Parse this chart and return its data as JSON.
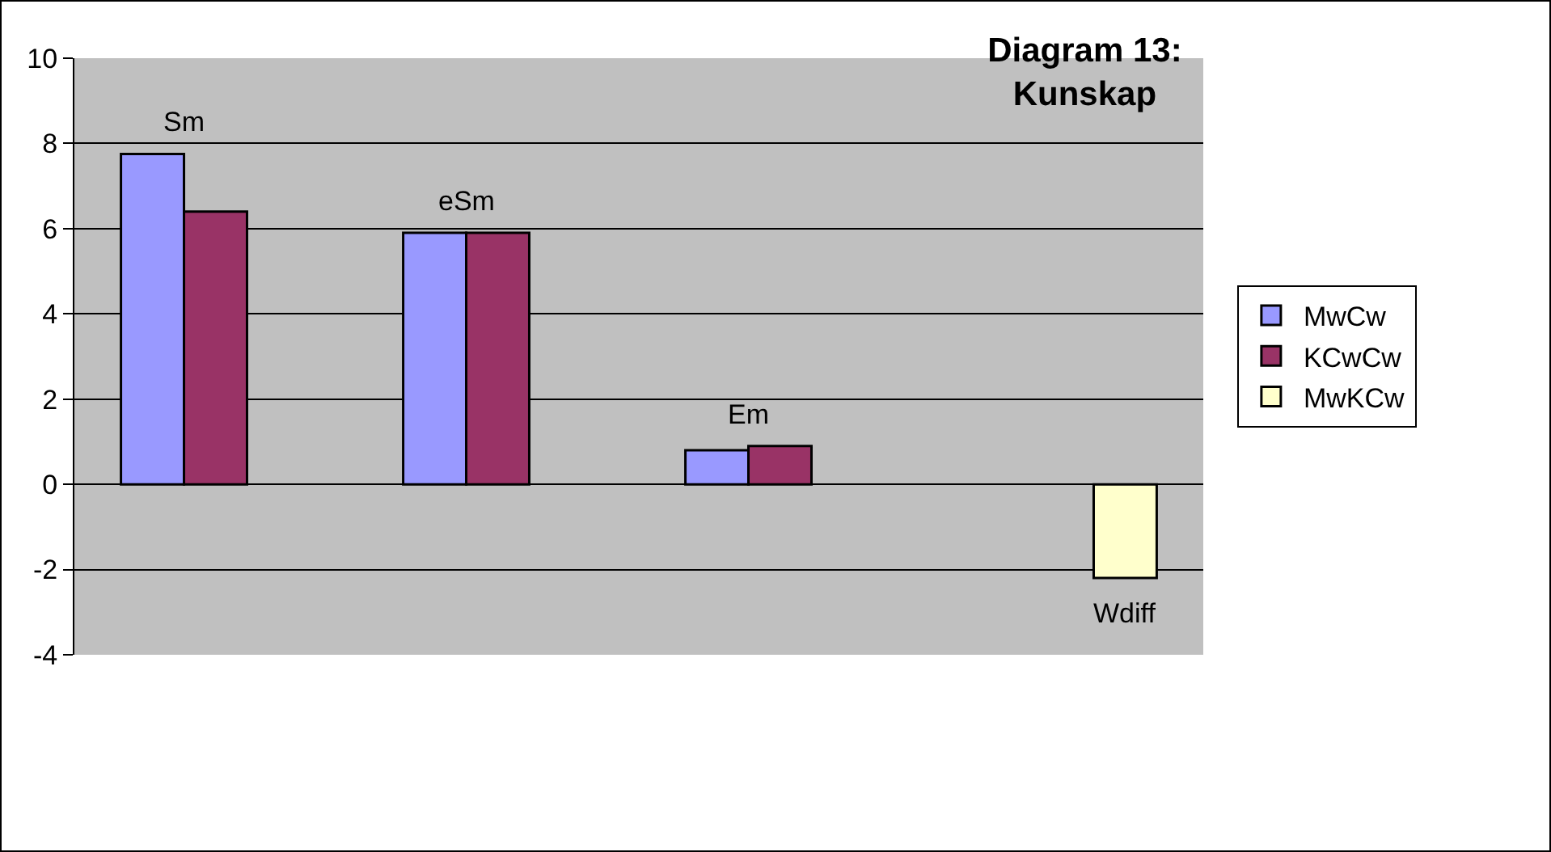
{
  "chart_data": {
    "type": "bar",
    "title": "Diagram 13:\nKunskap",
    "categories": [
      "Sm",
      "eSm",
      "Em",
      "Wdiff"
    ],
    "series": [
      {
        "name": "MwCw",
        "color": "#9999ff",
        "values": [
          7.75,
          5.9,
          0.8,
          null
        ]
      },
      {
        "name": "KCwCw",
        "color": "#993366",
        "values": [
          6.4,
          5.9,
          0.9,
          null
        ]
      },
      {
        "name": "MwKCw",
        "color": "#ffffcc",
        "values": [
          null,
          null,
          null,
          -2.2
        ]
      }
    ],
    "ylim": [
      -4,
      10
    ],
    "yticks": [
      -4,
      -2,
      0,
      2,
      4,
      6,
      8,
      10
    ],
    "grid": "y",
    "legend": "right",
    "tick_labels": "y"
  }
}
